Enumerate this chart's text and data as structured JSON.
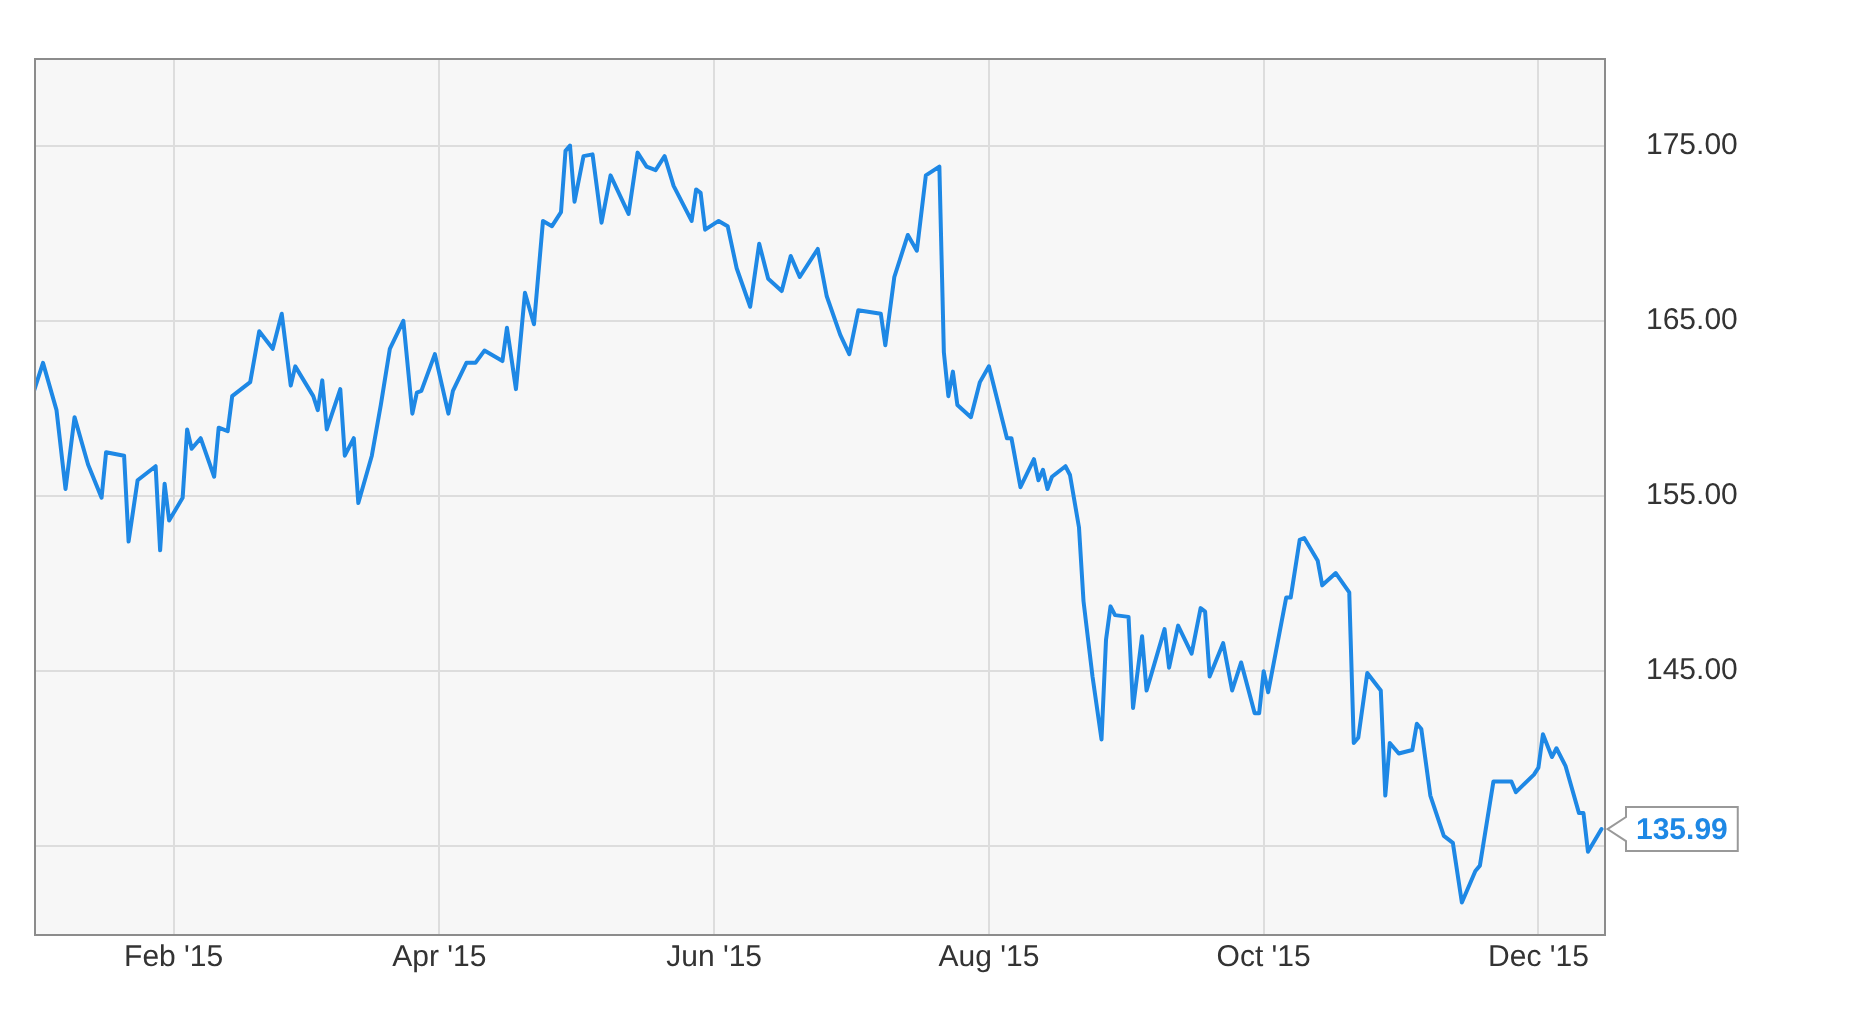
{
  "chart_data": {
    "type": "line",
    "x": [
      "2015-01-01",
      "2015-01-03",
      "2015-01-06",
      "2015-01-08",
      "2015-01-10",
      "2015-01-13",
      "2015-01-16",
      "2015-01-17",
      "2015-01-21",
      "2015-01-22",
      "2015-01-24",
      "2015-01-28",
      "2015-01-29",
      "2015-01-30",
      "2015-01-31",
      "2015-02-03",
      "2015-02-04",
      "2015-02-05",
      "2015-02-07",
      "2015-02-10",
      "2015-02-11",
      "2015-02-13",
      "2015-02-14",
      "2015-02-18",
      "2015-02-20",
      "2015-02-23",
      "2015-02-25",
      "2015-02-27",
      "2015-02-28",
      "2015-03-04",
      "2015-03-05",
      "2015-03-06",
      "2015-03-07",
      "2015-03-10",
      "2015-03-11",
      "2015-03-13",
      "2015-03-14",
      "2015-03-17",
      "2015-03-19",
      "2015-03-21",
      "2015-03-24",
      "2015-03-26",
      "2015-03-27",
      "2015-03-28",
      "2015-03-31",
      "2015-04-03",
      "2015-04-04",
      "2015-04-07",
      "2015-04-09",
      "2015-04-11",
      "2015-04-15",
      "2015-04-16",
      "2015-04-18",
      "2015-04-20",
      "2015-04-22",
      "2015-04-24",
      "2015-04-26",
      "2015-04-28",
      "2015-04-29",
      "2015-04-30",
      "2015-05-01",
      "2015-05-03",
      "2015-05-05",
      "2015-05-07",
      "2015-05-09",
      "2015-05-13",
      "2015-05-15",
      "2015-05-17",
      "2015-05-19",
      "2015-05-21",
      "2015-05-23",
      "2015-05-27",
      "2015-05-28",
      "2015-05-29",
      "2015-05-30",
      "2015-06-02",
      "2015-06-04",
      "2015-06-06",
      "2015-06-09",
      "2015-06-11",
      "2015-06-13",
      "2015-06-16",
      "2015-06-18",
      "2015-06-20",
      "2015-06-24",
      "2015-06-26",
      "2015-06-29",
      "2015-07-01",
      "2015-07-03",
      "2015-07-08",
      "2015-07-09",
      "2015-07-11",
      "2015-07-14",
      "2015-07-16",
      "2015-07-18",
      "2015-07-21",
      "2015-07-22",
      "2015-07-23",
      "2015-07-24",
      "2015-07-25",
      "2015-07-28",
      "2015-07-30",
      "2015-08-01",
      "2015-08-05",
      "2015-08-06",
      "2015-08-08",
      "2015-08-11",
      "2015-08-12",
      "2015-08-13",
      "2015-08-14",
      "2015-08-15",
      "2015-08-18",
      "2015-08-19",
      "2015-08-21",
      "2015-08-22",
      "2015-08-24",
      "2015-08-26",
      "2015-08-27",
      "2015-08-28",
      "2015-08-29",
      "2015-09-01",
      "2015-09-02",
      "2015-09-04",
      "2015-09-05",
      "2015-09-09",
      "2015-09-10",
      "2015-09-12",
      "2015-09-15",
      "2015-09-17",
      "2015-09-18",
      "2015-09-19",
      "2015-09-22",
      "2015-09-24",
      "2015-09-26",
      "2015-09-29",
      "2015-09-30",
      "2015-10-01",
      "2015-10-02",
      "2015-10-06",
      "2015-10-07",
      "2015-10-09",
      "2015-10-10",
      "2015-10-13",
      "2015-10-14",
      "2015-10-17",
      "2015-10-20",
      "2015-10-21",
      "2015-10-22",
      "2015-10-24",
      "2015-10-27",
      "2015-10-28",
      "2015-10-29",
      "2015-10-31",
      "2015-11-03",
      "2015-11-04",
      "2015-11-05",
      "2015-11-07",
      "2015-11-10",
      "2015-11-12",
      "2015-11-14",
      "2015-11-17",
      "2015-11-18",
      "2015-11-21",
      "2015-11-25",
      "2015-11-26",
      "2015-11-30",
      "2015-12-01",
      "2015-12-02",
      "2015-12-04",
      "2015-12-05",
      "2015-12-07",
      "2015-12-10",
      "2015-12-11",
      "2015-12-12",
      "2015-12-15"
    ],
    "series": [
      {
        "color": "#1e88e5",
        "values": [
          161.0,
          162.6,
          159.9,
          155.4,
          159.5,
          156.8,
          154.9,
          157.5,
          157.3,
          152.4,
          155.9,
          156.7,
          151.9,
          155.7,
          153.6,
          154.9,
          158.8,
          157.7,
          158.3,
          156.1,
          158.9,
          158.7,
          160.7,
          161.5,
          164.4,
          163.4,
          165.4,
          161.3,
          162.4,
          160.7,
          159.9,
          161.6,
          158.8,
          161.1,
          157.3,
          158.3,
          154.6,
          157.3,
          160.2,
          163.4,
          165.0,
          159.7,
          160.9,
          161.0,
          163.1,
          159.7,
          161.0,
          162.6,
          162.6,
          163.3,
          162.7,
          164.6,
          161.1,
          166.6,
          164.8,
          170.7,
          170.4,
          171.2,
          174.7,
          175.0,
          171.8,
          174.4,
          174.5,
          170.6,
          173.3,
          171.1,
          174.6,
          173.8,
          173.6,
          174.4,
          172.7,
          170.7,
          172.5,
          172.3,
          170.2,
          170.7,
          170.4,
          168.0,
          165.8,
          169.4,
          167.4,
          166.7,
          168.7,
          167.5,
          169.1,
          166.4,
          164.2,
          163.1,
          165.6,
          165.4,
          163.6,
          167.5,
          169.9,
          169.0,
          173.3,
          173.8,
          163.2,
          160.7,
          162.1,
          160.2,
          159.5,
          161.5,
          162.4,
          158.3,
          158.3,
          155.5,
          157.1,
          155.9,
          156.5,
          155.4,
          156.1,
          156.7,
          156.2,
          153.2,
          149.0,
          144.7,
          141.1,
          146.8,
          148.7,
          148.2,
          148.1,
          142.9,
          147.0,
          143.9,
          147.4,
          145.2,
          147.6,
          146.0,
          148.6,
          148.4,
          144.7,
          146.6,
          143.9,
          145.5,
          142.6,
          142.6,
          145.0,
          143.8,
          149.2,
          149.2,
          152.5,
          152.6,
          151.3,
          149.9,
          150.6,
          149.5,
          140.9,
          141.2,
          144.9,
          143.9,
          137.9,
          140.9,
          140.3,
          140.5,
          142.0,
          141.7,
          137.9,
          135.6,
          135.2,
          131.8,
          133.6,
          133.9,
          138.7,
          138.7,
          138.1,
          139.1,
          139.5,
          141.4,
          140.1,
          140.6,
          139.6,
          136.9,
          136.9,
          134.7,
          135.99
        ]
      }
    ],
    "xlim": [
      "2015-01-01",
      "2015-12-16"
    ],
    "xticks": [
      {
        "value": "2015-02-01",
        "label": "Feb '15"
      },
      {
        "value": "2015-04-01",
        "label": "Apr '15"
      },
      {
        "value": "2015-06-01",
        "label": "Jun '15"
      },
      {
        "value": "2015-08-01",
        "label": "Aug '15"
      },
      {
        "value": "2015-10-01",
        "label": "Oct '15"
      },
      {
        "value": "2015-12-01",
        "label": "Dec '15"
      }
    ],
    "ylim": [
      130,
      180
    ],
    "yticks": [
      {
        "value": 135,
        "label": null
      },
      {
        "value": 145,
        "label": "145.00"
      },
      {
        "value": 155,
        "label": "155.00"
      },
      {
        "value": 165,
        "label": "165.00"
      },
      {
        "value": 175,
        "label": "175.00"
      }
    ],
    "grid": true,
    "legend": false,
    "marker": "none",
    "line_style": "solid",
    "annotations": [
      {
        "text": "135.99",
        "x": "2015-12-15",
        "y": 135.99
      }
    ]
  }
}
